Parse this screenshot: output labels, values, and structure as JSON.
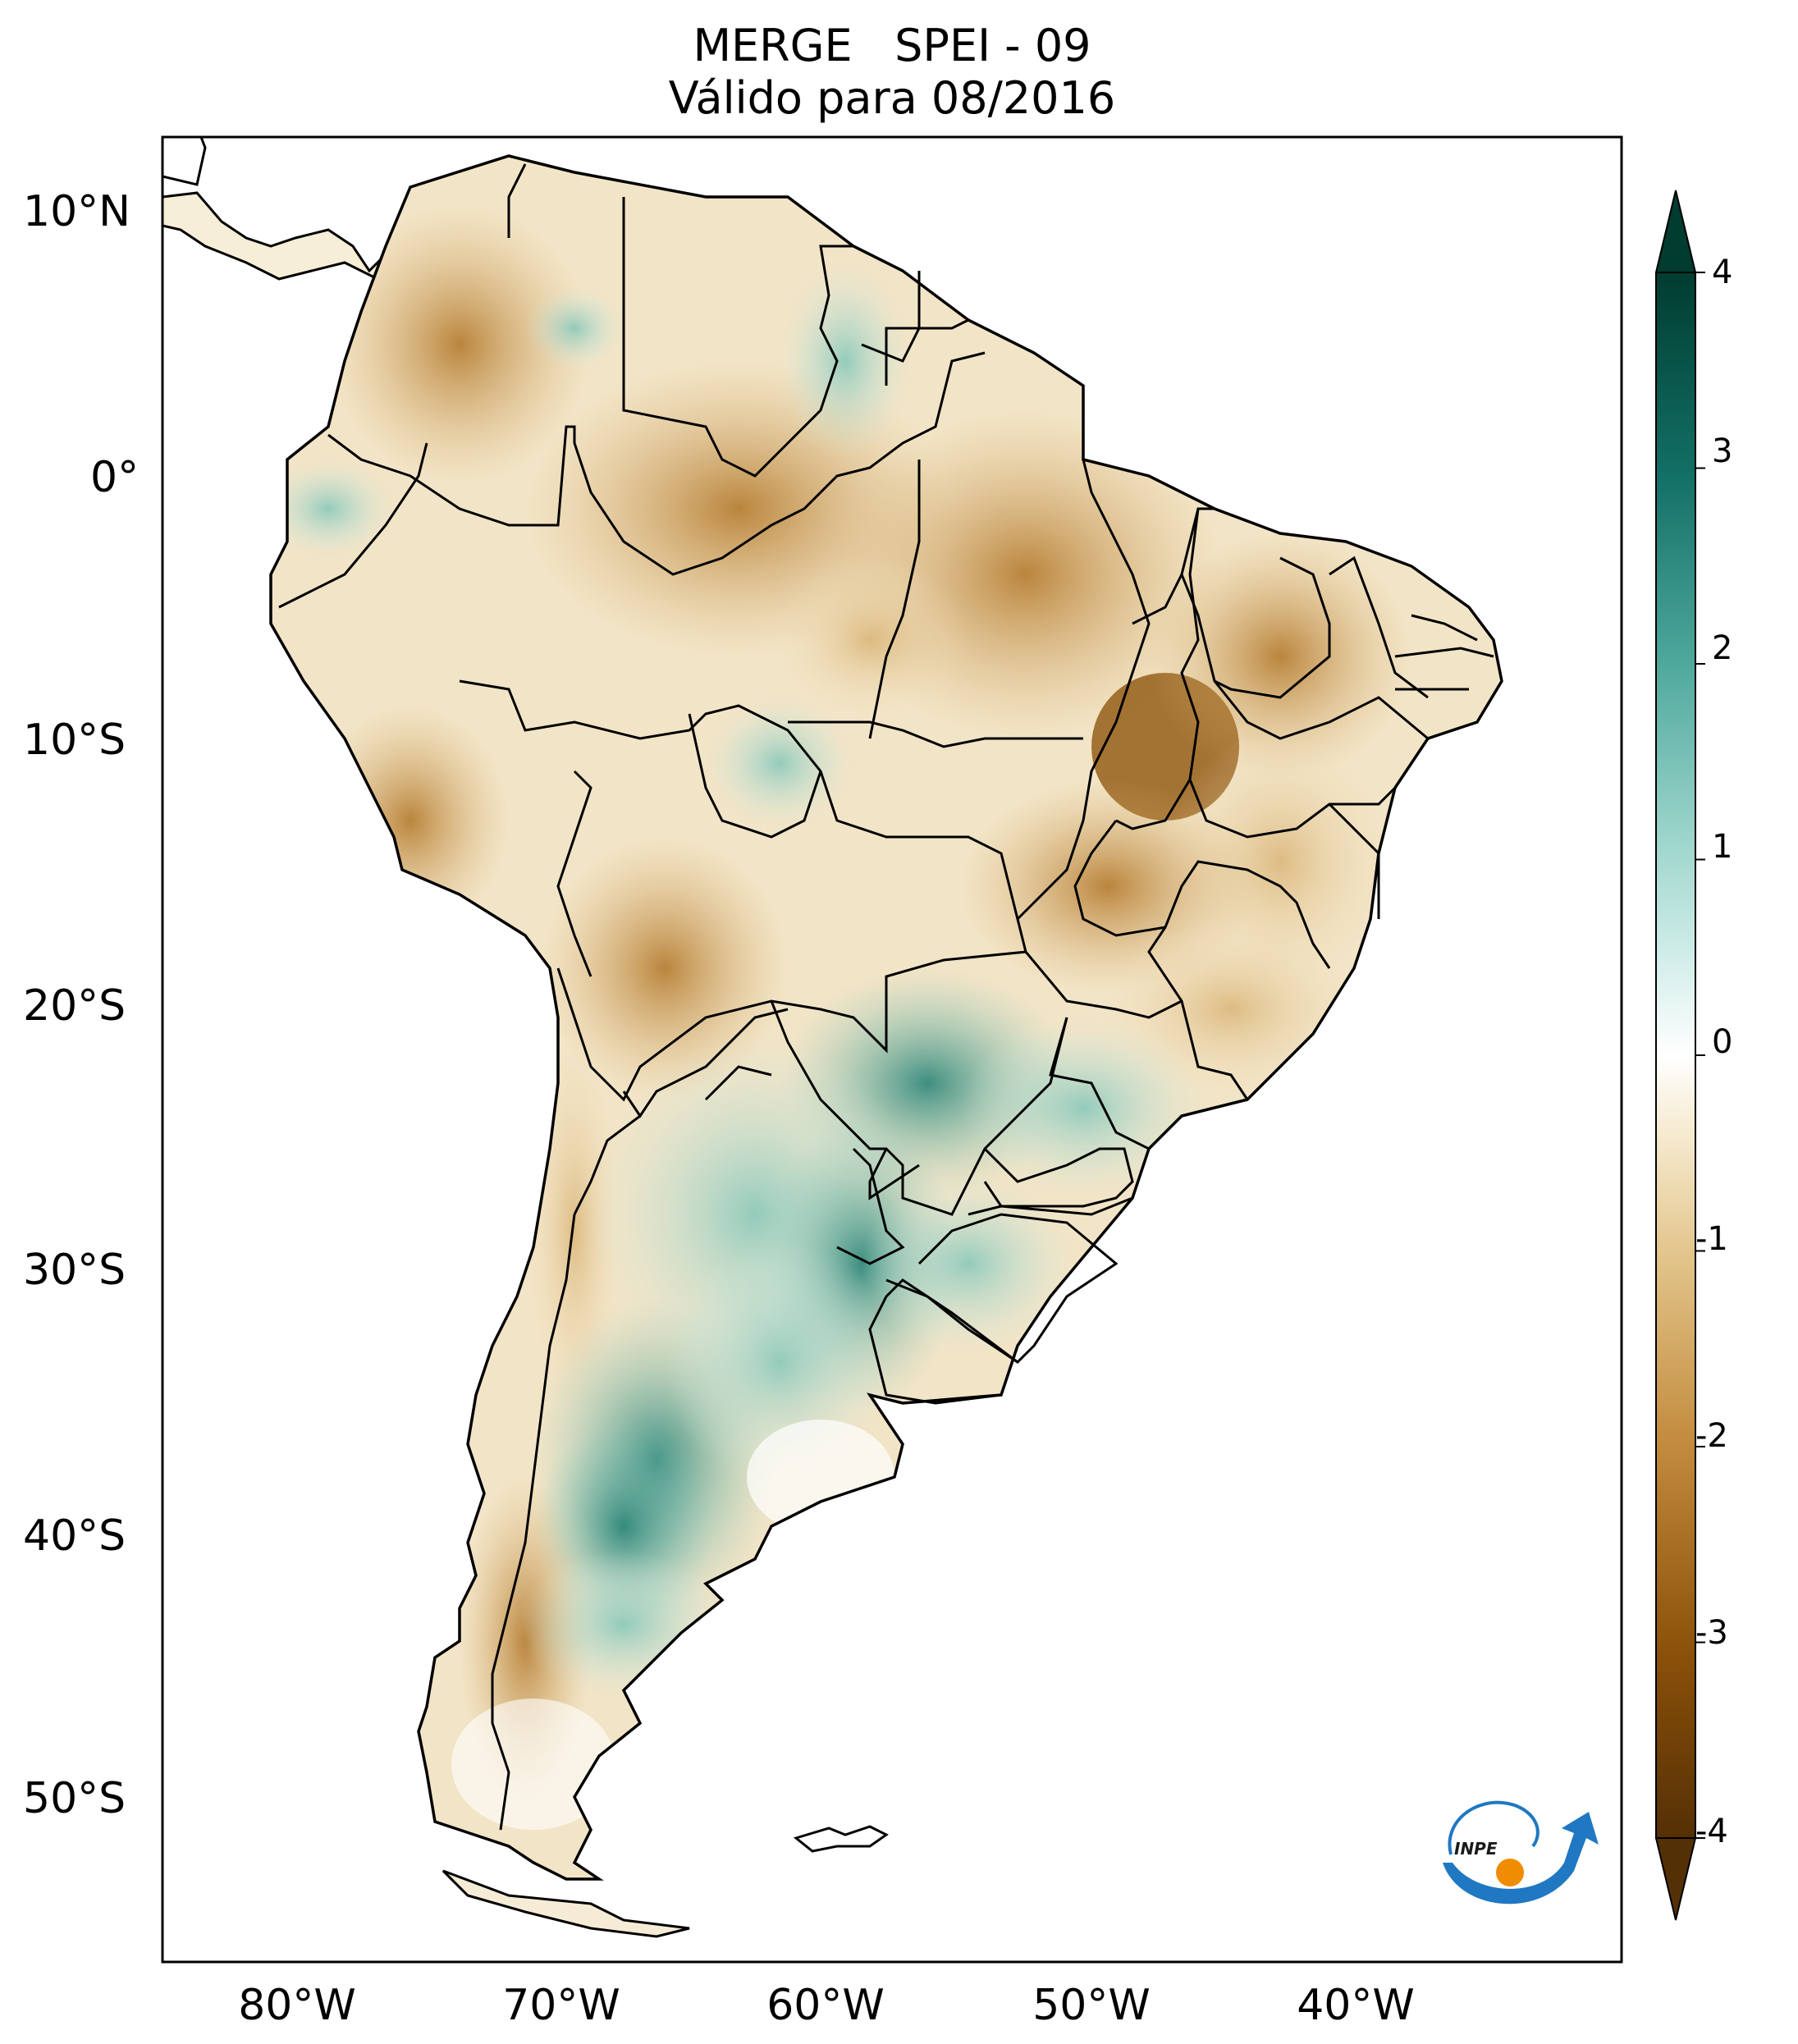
{
  "header": {
    "title_line1": "MERGE   SPEI - 09",
    "title_line2": "Válido para 08/2016"
  },
  "map": {
    "region": "South America",
    "variable": "SPEI - 09",
    "lon_range": [
      -85,
      -30
    ],
    "lat_range": [
      -56,
      13
    ],
    "lat_ticks": [
      {
        "value": 10,
        "label": "10°N"
      },
      {
        "value": 0,
        "label": "0°"
      },
      {
        "value": -10,
        "label": "10°S"
      },
      {
        "value": -20,
        "label": "20°S"
      },
      {
        "value": -30,
        "label": "30°S"
      },
      {
        "value": -40,
        "label": "40°S"
      },
      {
        "value": -50,
        "label": "50°S"
      }
    ],
    "lon_ticks": [
      {
        "value": -80,
        "label": "80°W"
      },
      {
        "value": -70,
        "label": "70°W"
      },
      {
        "value": -60,
        "label": "60°W"
      },
      {
        "value": -50,
        "label": "50°W"
      },
      {
        "value": -40,
        "label": "40°W"
      }
    ]
  },
  "colorbar": {
    "min": -4,
    "max": 4,
    "extend": "both",
    "ticks": [
      {
        "value": 4,
        "label": "4"
      },
      {
        "value": 3,
        "label": "3"
      },
      {
        "value": 2,
        "label": "2"
      },
      {
        "value": 1,
        "label": "1"
      },
      {
        "value": 0,
        "label": "0"
      },
      {
        "value": -1,
        "label": "-1"
      },
      {
        "value": -2,
        "label": "-2"
      },
      {
        "value": -3,
        "label": "-3"
      },
      {
        "value": -4,
        "label": "-4"
      }
    ],
    "colors": {
      "wet_extreme": "#00362f",
      "wet_strong": "#0e6b61",
      "wet_moderate": "#46a296",
      "wet_mild": "#a6dcd3",
      "neutral": "#ffffff",
      "dry_mild": "#f0deb5",
      "dry_moderate": "#d4a65a",
      "dry_strong": "#a9671c",
      "dry_extreme": "#543005"
    }
  },
  "logo": {
    "text": "INPE",
    "colors": {
      "blue": "#1f78c1",
      "orange": "#f08c00"
    }
  }
}
